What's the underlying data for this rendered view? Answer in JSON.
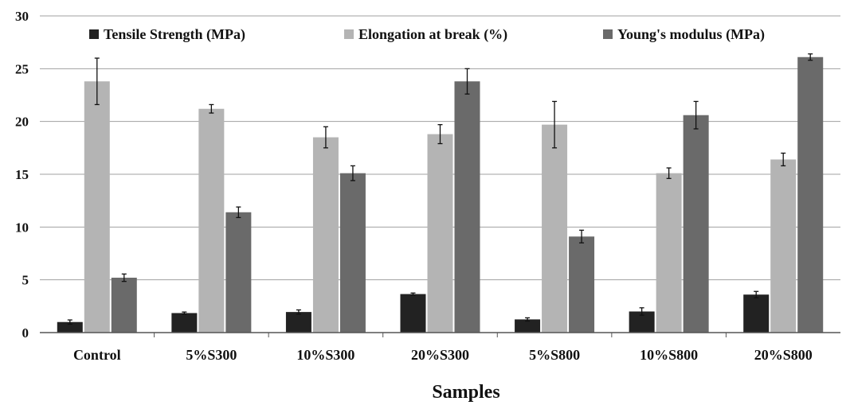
{
  "chart_data": {
    "type": "bar",
    "title": "",
    "xlabel": "Samples",
    "ylabel": "",
    "ylim": [
      0,
      30
    ],
    "yticks": [
      0,
      5,
      10,
      15,
      20,
      25,
      30
    ],
    "grid": true,
    "legend_position": "top",
    "categories": [
      "Control",
      "5%S300",
      "10%S300",
      "20%S300",
      "5%S800",
      "10%S800",
      "20%S800"
    ],
    "series": [
      {
        "name": "Tensile Strength (MPa)",
        "color": "#222222",
        "values": [
          1.0,
          1.85,
          1.95,
          3.65,
          1.25,
          2.0,
          3.6
        ],
        "errors": [
          0.2,
          0.1,
          0.2,
          0.1,
          0.15,
          0.35,
          0.3
        ]
      },
      {
        "name": "Elongation at break (%)",
        "color": "#b4b4b4",
        "values": [
          23.8,
          21.2,
          18.5,
          18.8,
          19.7,
          15.1,
          16.4
        ],
        "errors": [
          2.2,
          0.4,
          1.0,
          0.9,
          2.2,
          0.5,
          0.6
        ]
      },
      {
        "name": "Young's modulus (MPa)",
        "color": "#6a6a6a",
        "values": [
          5.2,
          11.4,
          15.1,
          23.8,
          9.1,
          20.6,
          26.1
        ],
        "errors": [
          0.35,
          0.5,
          0.7,
          1.2,
          0.6,
          1.3,
          0.3
        ]
      }
    ]
  }
}
